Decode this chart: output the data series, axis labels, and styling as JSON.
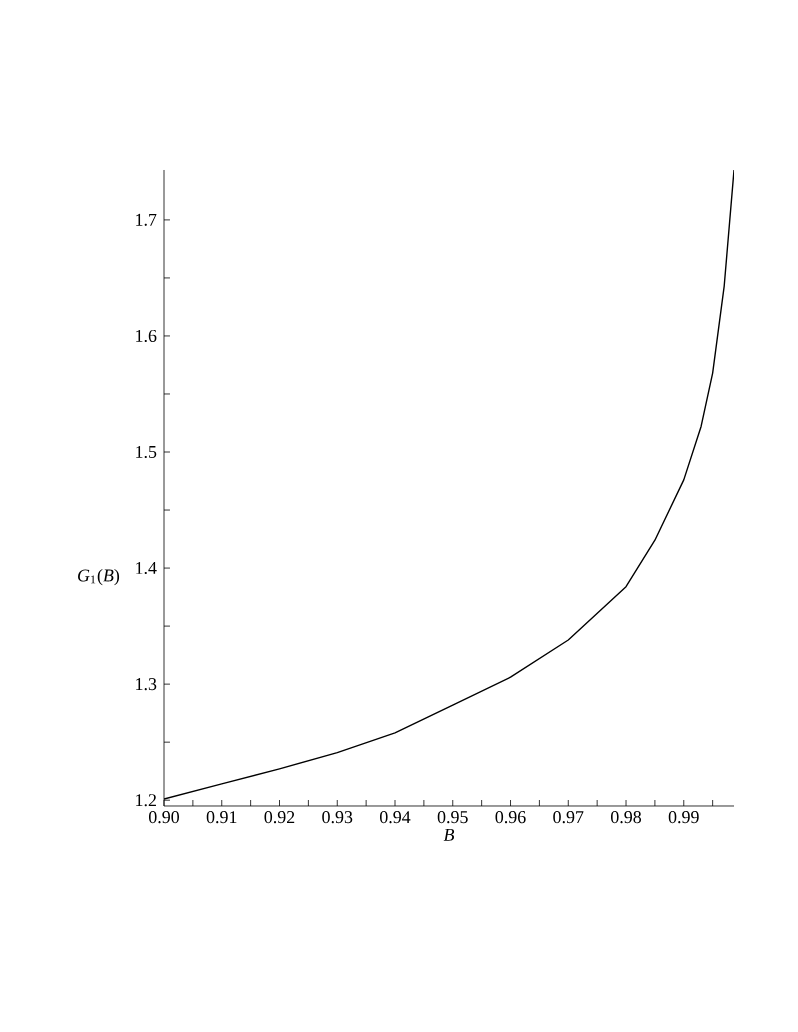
{
  "chart_data": {
    "type": "line",
    "xlabel": "B",
    "ylabel": "*G*$_{1}$(*B*)",
    "x": [
      0.9,
      0.91,
      0.92,
      0.93,
      0.94,
      0.95,
      0.96,
      0.97,
      0.98,
      0.985,
      0.99,
      0.993,
      0.995,
      0.997,
      0.9987
    ],
    "series": [
      {
        "color": "#000000",
        "values": [
          1.201,
          1.214,
          1.227,
          1.241,
          1.258,
          1.282,
          1.306,
          1.338,
          1.384,
          1.424,
          1.476,
          1.522,
          1.568,
          1.643,
          1.743
        ]
      }
    ],
    "xlim": [
      0.9,
      0.9987
    ],
    "ylim": [
      1.195,
      1.743
    ],
    "xticks": [
      {
        "value": 0.9,
        "label": "0.90"
      },
      {
        "value": 0.905,
        "label": null
      },
      {
        "value": 0.91,
        "label": "0.91"
      },
      {
        "value": 0.915,
        "label": null
      },
      {
        "value": 0.92,
        "label": "0.92"
      },
      {
        "value": 0.925,
        "label": null
      },
      {
        "value": 0.93,
        "label": "0.93"
      },
      {
        "value": 0.935,
        "label": null
      },
      {
        "value": 0.94,
        "label": "0.94"
      },
      {
        "value": 0.945,
        "label": null
      },
      {
        "value": 0.95,
        "label": "0.95"
      },
      {
        "value": 0.955,
        "label": null
      },
      {
        "value": 0.96,
        "label": "0.96"
      },
      {
        "value": 0.965,
        "label": null
      },
      {
        "value": 0.97,
        "label": "0.97"
      },
      {
        "value": 0.975,
        "label": null
      },
      {
        "value": 0.98,
        "label": "0.98"
      },
      {
        "value": 0.985,
        "label": null
      },
      {
        "value": 0.99,
        "label": "0.99"
      },
      {
        "value": 0.995,
        "label": null
      }
    ],
    "yticks": [
      {
        "value": 1.2,
        "label": "1.2"
      },
      {
        "value": 1.25,
        "label": null
      },
      {
        "value": 1.3,
        "label": "1.3"
      },
      {
        "value": 1.35,
        "label": null
      },
      {
        "value": 1.4,
        "label": "1.4"
      },
      {
        "value": 1.45,
        "label": null
      },
      {
        "value": 1.5,
        "label": "1.5"
      },
      {
        "value": 1.55,
        "label": null
      },
      {
        "value": 1.6,
        "label": "1.6"
      },
      {
        "value": 1.65,
        "label": null
      },
      {
        "value": 1.7,
        "label": "1.7"
      }
    ],
    "grid": false,
    "marker": "none",
    "line_style": "solid"
  }
}
